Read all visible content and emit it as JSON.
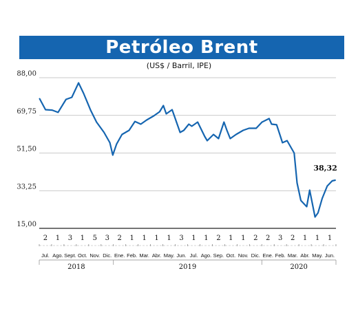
{
  "chart_data": {
    "type": "line",
    "title": "Petróleo Brent",
    "subtitle": "(US$ / Barril, IPE)",
    "ylim": [
      15,
      88
    ],
    "yticks": [
      "88,00",
      "69,75",
      "51,50",
      "33,25",
      "15,00"
    ],
    "grid": true,
    "line_color": "#1565b0",
    "last_value_label": "38,32",
    "x_day_labels": [
      "2",
      "1",
      "3",
      "1",
      "5",
      "3",
      "2",
      "1",
      "1",
      "1",
      "1",
      "3",
      "1",
      "1",
      "2",
      "1",
      "1",
      "2",
      "2",
      "3",
      "2",
      "1",
      "1",
      "1"
    ],
    "x_month_labels": [
      "Jul.",
      "Ago.",
      "Sept.",
      "Oct.",
      "Nov.",
      "Dic.",
      "Ene.",
      "Feb.",
      "Mar.",
      "Abr.",
      "May.",
      "Jun.",
      "Jul.",
      "Ago.",
      "Sep.",
      "Oct.",
      "Nov.",
      "Dic.",
      "Ene.",
      "Feb.",
      "Mar.",
      "Abr.",
      "May.",
      "Jun."
    ],
    "x_year_labels": [
      "2018",
      "2019",
      "2020"
    ],
    "series": [
      {
        "x": [
          "2018-07-02",
          "2018-07-16",
          "2018-08-01",
          "2018-08-15",
          "2018-09-03",
          "2018-09-17",
          "2018-10-03",
          "2018-10-15",
          "2018-11-01",
          "2018-11-15",
          "2018-12-03",
          "2018-12-17",
          "2018-12-24",
          "2019-01-02",
          "2019-01-15",
          "2019-02-01",
          "2019-02-15",
          "2019-03-01",
          "2019-03-15",
          "2019-04-01",
          "2019-04-15",
          "2019-04-24",
          "2019-05-01",
          "2019-05-15",
          "2019-06-03",
          "2019-06-12",
          "2019-06-24",
          "2019-07-01",
          "2019-07-15",
          "2019-08-01",
          "2019-08-07",
          "2019-08-22",
          "2019-09-03",
          "2019-09-16",
          "2019-09-23",
          "2019-10-01",
          "2019-10-15",
          "2019-11-01",
          "2019-11-15",
          "2019-12-02",
          "2019-12-16",
          "2020-01-02",
          "2020-01-08",
          "2020-01-20",
          "2020-02-03",
          "2020-02-14",
          "2020-03-02",
          "2020-03-09",
          "2020-03-18",
          "2020-04-01",
          "2020-04-08",
          "2020-04-21",
          "2020-04-28",
          "2020-05-08",
          "2020-05-20",
          "2020-06-01",
          "2020-06-08"
        ],
        "y": [
          77.8,
          72.5,
          72.3,
          71.2,
          77.5,
          78.5,
          85.5,
          80.5,
          72.2,
          66.5,
          61.5,
          56.5,
          50.5,
          55.8,
          60.5,
          62.5,
          66.8,
          65.5,
          67.5,
          69.5,
          71.5,
          74.5,
          70.5,
          72.5,
          61.5,
          62.5,
          65.5,
          64.5,
          66.5,
          59.5,
          57.5,
          60.5,
          58.5,
          66.5,
          62.5,
          58.5,
          60.5,
          62.5,
          63.5,
          63.5,
          66.5,
          68.2,
          65.5,
          65.2,
          56.5,
          57.5,
          51.5,
          37.0,
          28.5,
          25.5,
          33.5,
          20.5,
          22.5,
          29.5,
          35.5,
          38.0,
          38.32
        ]
      }
    ]
  }
}
